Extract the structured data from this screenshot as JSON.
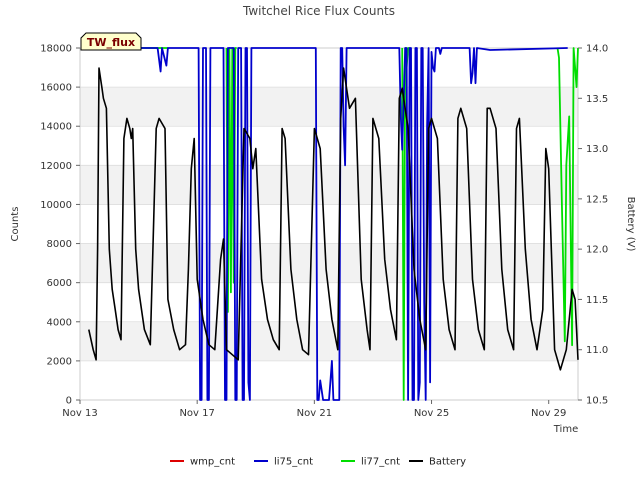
{
  "chart_data": {
    "type": "line",
    "title": "Twitchel Rice Flux Counts",
    "site_label": "TW_flux",
    "xlabel": "Time",
    "ylabel": "Counts",
    "ylabel_right": "Battery (V)",
    "x_start": "2022-11-13",
    "xlim": [
      0,
      17.0
    ],
    "ylim": [
      0,
      18000
    ],
    "ylim_right": [
      10.5,
      14.0
    ],
    "x_ticks": [
      {
        "value": 0,
        "label": "Nov 13"
      },
      {
        "value": 4,
        "label": "Nov 17"
      },
      {
        "value": 8,
        "label": "Nov 21"
      },
      {
        "value": 12,
        "label": "Nov 25"
      },
      {
        "value": 16,
        "label": "Nov 29"
      }
    ],
    "y_ticks": [
      0,
      2000,
      4000,
      6000,
      8000,
      10000,
      12000,
      14000,
      16000,
      18000
    ],
    "y_ticks_right": [
      10.5,
      11.0,
      11.5,
      12.0,
      12.5,
      13.0,
      13.5,
      14.0
    ],
    "grid": true,
    "band_shading": true,
    "legend_position": "bottom",
    "colors": {
      "wmp_cnt": "#dd0000",
      "li75_cnt": "#0000cc",
      "li77_cnt": "#00dd00",
      "Battery": "#000000"
    },
    "series": [
      {
        "name": "wmp_cnt",
        "axis": "left",
        "x": [],
        "y": []
      },
      {
        "name": "li75_cnt",
        "axis": "left",
        "x": [
          0.3,
          2.65,
          2.75,
          2.8,
          2.95,
          3.0,
          4.05,
          4.1,
          4.15,
          4.2,
          4.3,
          4.35,
          4.4,
          4.45,
          4.9,
          4.95,
          5.0,
          5.05,
          5.25,
          5.3,
          5.35,
          5.4,
          5.5,
          5.55,
          5.6,
          5.65,
          5.7,
          5.75,
          5.8,
          5.85,
          5.95,
          6.0,
          8.05,
          8.1,
          8.15,
          8.2,
          8.3,
          8.4,
          8.45,
          8.5,
          8.55,
          8.6,
          8.65,
          8.7,
          8.75,
          8.8,
          8.85,
          8.9,
          8.95,
          9.0,
          9.05,
          9.1,
          10.9,
          10.95,
          11.0,
          11.1,
          11.15,
          11.2,
          11.25,
          11.3,
          11.35,
          11.4,
          11.45,
          11.5,
          11.55,
          11.6,
          11.65,
          11.7,
          11.75,
          11.8,
          11.85,
          11.9,
          11.95,
          12.0,
          12.05,
          12.1,
          12.15,
          12.2,
          12.25,
          12.3,
          12.35,
          13.3,
          13.35,
          13.4,
          13.45,
          13.5,
          13.55,
          14.0,
          16.65
        ],
        "y": [
          18000,
          18000,
          16800,
          18000,
          17100,
          18000,
          18000,
          0,
          0,
          18000,
          18000,
          0,
          0,
          18000,
          18000,
          0,
          0,
          18000,
          18000,
          0,
          0,
          18000,
          18000,
          0,
          0,
          18000,
          18000,
          900,
          0,
          18000,
          18000,
          18000,
          18000,
          0,
          0,
          1000,
          0,
          0,
          0,
          0,
          1000,
          2000,
          0,
          0,
          0,
          0,
          0,
          18000,
          18000,
          14000,
          12000,
          18000,
          18000,
          14500,
          12800,
          18000,
          18000,
          0,
          18000,
          18000,
          0,
          0,
          18000,
          18000,
          0,
          900,
          18000,
          18000,
          5000,
          0,
          14000,
          18000,
          900,
          17800,
          17000,
          16800,
          18000,
          18000,
          18000,
          17700,
          18000,
          18000,
          16200,
          16700,
          18000,
          16200,
          18000,
          17900,
          18000
        ]
      },
      {
        "name": "li77_cnt",
        "axis": "left",
        "x": [
          0.3,
          3.0,
          3.05,
          3.1,
          3.15,
          5.0,
          5.05,
          5.1,
          5.15,
          5.2,
          5.25,
          5.3,
          5.35,
          11.0,
          11.05,
          11.1,
          11.15,
          11.2,
          11.25,
          16.3,
          16.35,
          16.45,
          16.55,
          16.6,
          16.7,
          16.8,
          16.85,
          16.9,
          16.95,
          17.0
        ],
        "y": [
          18000,
          18000,
          17000,
          16500,
          18000,
          18000,
          4500,
          18000,
          5500,
          18000,
          6000,
          18000,
          18000,
          18000,
          0,
          18000,
          17000,
          18000,
          18000,
          18000,
          17500,
          10000,
          3000,
          12000,
          14500,
          2800,
          18000,
          17000,
          16000,
          18000
        ],
        "segments": [
          [
            0.3,
            3.0
          ],
          [
            5.0,
            5.35
          ],
          [
            11.0,
            11.25
          ],
          [
            16.3,
            17.0
          ]
        ]
      },
      {
        "name": "Battery",
        "axis": "right",
        "x": [
          0.3,
          0.45,
          0.55,
          0.6,
          0.65,
          0.7,
          0.75,
          0.8,
          0.9,
          1.0,
          1.1,
          1.2,
          1.3,
          1.4,
          1.5,
          1.6,
          1.7,
          1.75,
          1.8,
          1.9,
          2.0,
          2.2,
          2.4,
          2.6,
          2.7,
          2.8,
          2.9,
          3.0,
          3.2,
          3.4,
          3.6,
          3.7,
          3.8,
          3.9,
          4.0,
          4.2,
          4.4,
          4.6,
          4.8,
          4.9,
          5.0,
          5.2,
          5.4,
          5.6,
          5.8,
          5.9,
          6.0,
          6.2,
          6.4,
          6.6,
          6.8,
          6.9,
          7.0,
          7.2,
          7.4,
          7.6,
          7.8,
          8.0,
          8.2,
          8.4,
          8.6,
          8.8,
          8.9,
          9.0,
          9.2,
          9.4,
          9.6,
          9.8,
          9.9,
          10.0,
          10.2,
          10.4,
          10.6,
          10.8,
          10.9,
          11.0,
          11.2,
          11.4,
          11.6,
          11.8,
          11.9,
          12.0,
          12.2,
          12.4,
          12.6,
          12.8,
          12.9,
          13.0,
          13.2,
          13.4,
          13.6,
          13.8,
          13.9,
          14.0,
          14.2,
          14.4,
          14.6,
          14.8,
          14.9,
          15.0,
          15.2,
          15.4,
          15.6,
          15.8,
          15.9,
          16.0,
          16.2,
          16.4,
          16.6,
          16.8,
          16.9,
          17.0
        ],
        "y": [
          11.2,
          11.0,
          10.9,
          12.0,
          13.8,
          13.7,
          13.6,
          13.5,
          13.4,
          12.0,
          11.6,
          11.4,
          11.2,
          11.1,
          13.1,
          13.3,
          13.2,
          13.1,
          13.2,
          12.0,
          11.6,
          11.2,
          11.05,
          13.2,
          13.3,
          13.25,
          13.2,
          11.5,
          11.2,
          11.0,
          11.05,
          11.8,
          12.8,
          13.1,
          11.7,
          11.3,
          11.05,
          11.0,
          11.9,
          12.1,
          11.0,
          10.95,
          10.9,
          13.2,
          13.1,
          12.8,
          13.0,
          11.7,
          11.3,
          11.1,
          11.0,
          13.2,
          13.1,
          11.8,
          11.3,
          11.0,
          10.95,
          13.2,
          13.0,
          11.8,
          11.3,
          11.0,
          13.3,
          13.8,
          13.4,
          13.5,
          11.7,
          11.2,
          11.0,
          13.3,
          13.1,
          11.9,
          11.4,
          11.1,
          13.5,
          13.6,
          13.2,
          11.8,
          11.3,
          11.0,
          13.2,
          13.3,
          13.1,
          11.7,
          11.2,
          11.0,
          13.3,
          13.4,
          13.2,
          11.7,
          11.2,
          11.0,
          13.4,
          13.4,
          13.2,
          11.8,
          11.2,
          11.0,
          13.2,
          13.3,
          12.0,
          11.3,
          11.0,
          11.4,
          13.0,
          12.8,
          11.0,
          10.8,
          11.0,
          11.6,
          11.5,
          10.9
        ]
      }
    ]
  }
}
